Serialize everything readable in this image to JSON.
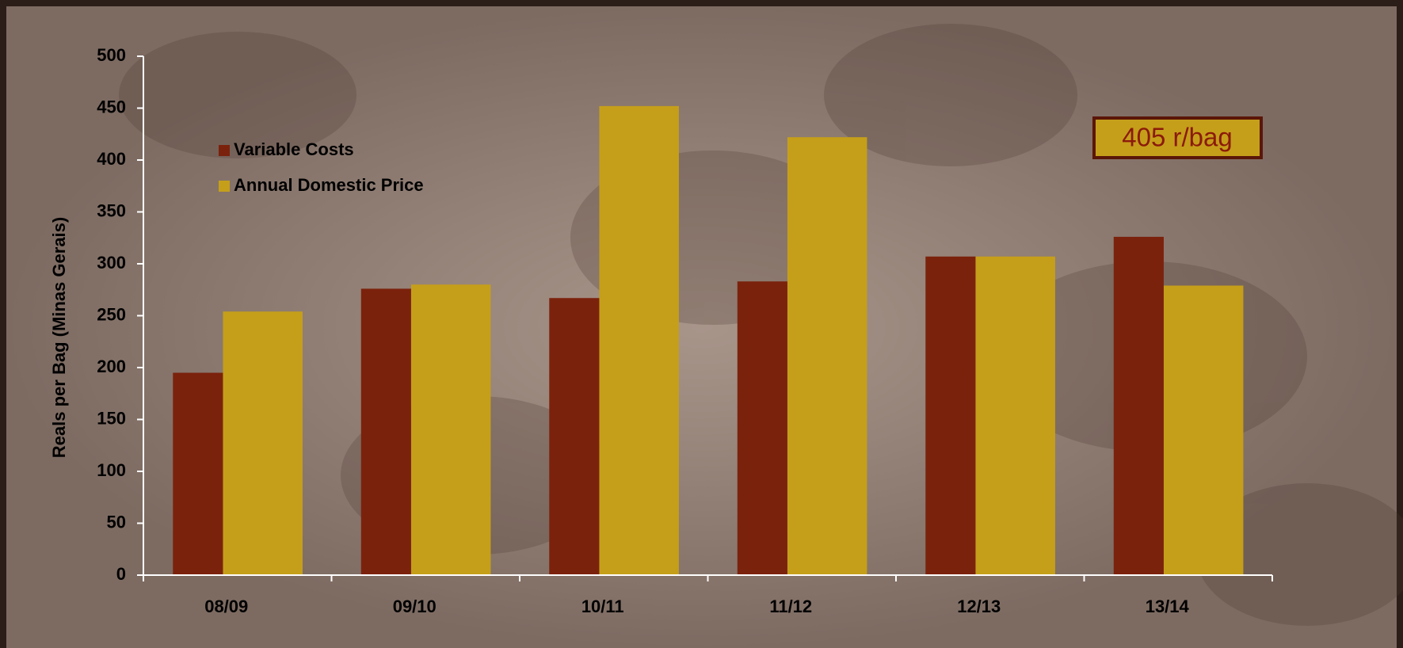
{
  "chart_data": {
    "type": "bar",
    "ylabel": "Reals per Bag (Minas Gerais)",
    "categories": [
      "08/09",
      "09/10",
      "10/11",
      "11/12",
      "12/13",
      "13/14"
    ],
    "series": [
      {
        "name": "Variable Costs",
        "color": "#7b220c",
        "values": [
          195,
          276,
          267,
          283,
          307,
          326
        ]
      },
      {
        "name": "Annual Domestic Price",
        "color": "#c59f1a",
        "values": [
          254,
          280,
          452,
          422,
          307,
          279
        ]
      }
    ],
    "ylim": [
      0,
      500
    ],
    "yticks": [
      0,
      50,
      100,
      150,
      200,
      250,
      300,
      350,
      400,
      450,
      500
    ],
    "annotation": "405 r/bag",
    "legend": "upper left"
  }
}
